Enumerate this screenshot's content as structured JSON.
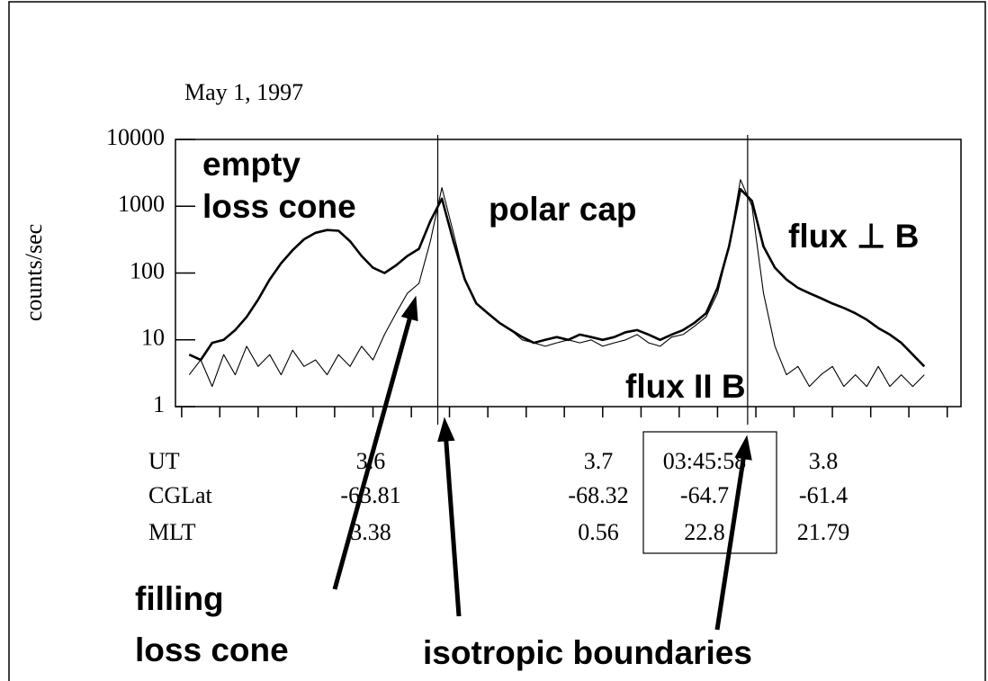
{
  "chart_data": {
    "type": "line",
    "title": "May 1, 1997",
    "y_label": "counts/sec",
    "log_y": true,
    "x": [
      3.52,
      3.525,
      3.53,
      3.535,
      3.54,
      3.545,
      3.55,
      3.555,
      3.56,
      3.565,
      3.57,
      3.575,
      3.58,
      3.585,
      3.59,
      3.595,
      3.6,
      3.605,
      3.61,
      3.615,
      3.62,
      3.625,
      3.63,
      3.635,
      3.64,
      3.645,
      3.65,
      3.655,
      3.66,
      3.665,
      3.67,
      3.675,
      3.68,
      3.685,
      3.69,
      3.695,
      3.7,
      3.705,
      3.71,
      3.715,
      3.72,
      3.725,
      3.73,
      3.735,
      3.74,
      3.745,
      3.75,
      3.755,
      3.76,
      3.765,
      3.77,
      3.775,
      3.78,
      3.785,
      3.79,
      3.795,
      3.8,
      3.805,
      3.81,
      3.815,
      3.82,
      3.825,
      3.83,
      3.835,
      3.84
    ],
    "xlim": [
      3.514,
      3.856
    ],
    "xticks": [
      3.5167,
      3.5333,
      3.55,
      3.5667,
      3.5833,
      3.6,
      3.6167,
      3.6333,
      3.65,
      3.6667,
      3.6833,
      3.7,
      3.7167,
      3.7333,
      3.75,
      3.7667,
      3.7833,
      3.8,
      3.8167,
      3.8333,
      3.85
    ],
    "ylim": [
      1,
      10000
    ],
    "yticks": [
      1,
      10,
      100,
      1000,
      10000
    ],
    "series": [
      {
        "name": "flux ⊥ B",
        "color": "#000000",
        "width": 2.6,
        "values": [
          6,
          5,
          9,
          10,
          14,
          22,
          40,
          80,
          140,
          220,
          320,
          400,
          440,
          430,
          300,
          180,
          120,
          100,
          130,
          180,
          230,
          600,
          1300,
          300,
          80,
          35,
          25,
          18,
          14,
          11,
          9,
          10,
          11,
          10,
          12,
          11,
          10,
          11,
          13,
          14,
          12,
          10,
          12,
          14,
          18,
          25,
          60,
          250,
          1800,
          1200,
          250,
          120,
          80,
          60,
          50,
          42,
          35,
          30,
          25,
          20,
          15,
          12,
          9,
          6,
          4
        ]
      },
      {
        "name": "flux II B",
        "color": "#000000",
        "width": 1.1,
        "values": [
          3,
          5,
          2,
          6,
          3,
          8,
          4,
          6,
          3,
          7,
          4,
          5,
          3,
          6,
          4,
          8,
          5,
          12,
          25,
          50,
          70,
          300,
          1900,
          400,
          80,
          35,
          25,
          18,
          14,
          10,
          9,
          8,
          9,
          10,
          9,
          10,
          8,
          9,
          10,
          12,
          9,
          8,
          11,
          12,
          16,
          22,
          50,
          250,
          2500,
          1000,
          50,
          8,
          3,
          4,
          2,
          3,
          4,
          2,
          3,
          2,
          4,
          2,
          3,
          2,
          3
        ]
      }
    ],
    "boundaries": [
      3.6282,
      3.7631
    ],
    "annotations": [
      "empty",
      "loss cone",
      "polar cap",
      "filling",
      "loss cone",
      "isotropic boundaries"
    ]
  },
  "table": {
    "rows": [
      {
        "label": "UT",
        "cells": [
          "3.6",
          "3.7",
          "03:45:58",
          "3.8"
        ]
      },
      {
        "label": "CGLat",
        "cells": [
          "-63.81",
          "-68.32",
          "-64.7",
          "-61.4"
        ]
      },
      {
        "label": "MLT",
        "cells": [
          "3.38",
          "0.56",
          "22.8",
          "21.79"
        ]
      }
    ]
  }
}
